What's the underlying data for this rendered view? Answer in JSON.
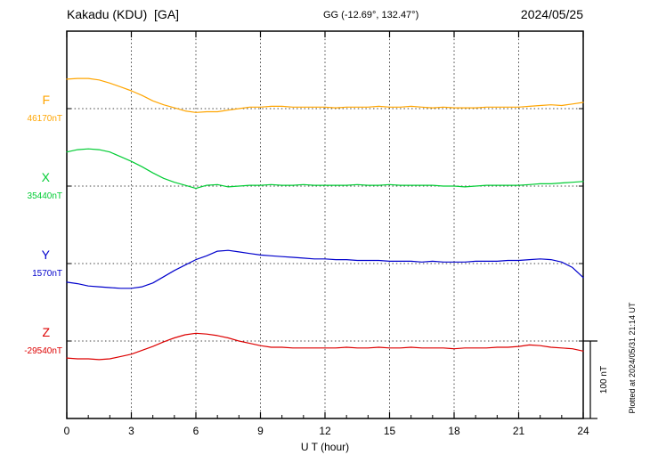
{
  "header": {
    "station": "Kakadu (KDU)  [GA]",
    "coordinates": "GG (-12.69°, 132.47°)",
    "date": "2024/05/25"
  },
  "chart_data": {
    "type": "line",
    "title": "Kakadu (KDU)  [GA]",
    "subtitle": "GG (-12.69°, 132.47°)",
    "date": "2024/05/25",
    "xlabel": "U T (hour)",
    "x_ticks": [
      0,
      3,
      6,
      9,
      12,
      15,
      18,
      21,
      24
    ],
    "x_range_hours": [
      0,
      24
    ],
    "grid": "dotted vertical at 3-hour marks, dotted horizontal baselines per trace",
    "scale_bar": {
      "label": "100 nT",
      "nT": 100
    },
    "footnote": "Plotted at 2024/05/31 21:14 UT",
    "x": [
      0,
      0.5,
      1,
      1.5,
      2,
      2.5,
      3,
      3.5,
      4,
      4.5,
      5,
      5.5,
      6,
      6.5,
      7,
      7.5,
      8,
      8.5,
      9,
      9.5,
      10,
      10.5,
      11,
      11.5,
      12,
      12.5,
      13,
      13.5,
      14,
      14.5,
      15,
      15.5,
      16,
      16.5,
      17,
      17.5,
      18,
      18.5,
      19,
      19.5,
      20,
      20.5,
      21,
      21.5,
      22,
      22.5,
      23,
      23.5,
      24
    ],
    "series": [
      {
        "name": "F",
        "color": "#ffa500",
        "baseline_value_label": "46170nT",
        "offsets_nT": [
          38,
          39,
          39,
          37,
          33,
          28,
          23,
          17,
          10,
          5,
          1,
          -3,
          -5,
          -4,
          -4,
          -2,
          0,
          2,
          2,
          3,
          3,
          2,
          2,
          2,
          2,
          1,
          2,
          2,
          2,
          3,
          2,
          2,
          3,
          2,
          1,
          2,
          1,
          1,
          1,
          2,
          2,
          2,
          2,
          3,
          4,
          5,
          4,
          6,
          8
        ]
      },
      {
        "name": "X",
        "color": "#00cc33",
        "baseline_value_label": "35440nT",
        "offsets_nT": [
          44,
          47,
          48,
          47,
          44,
          38,
          32,
          25,
          17,
          10,
          5,
          1,
          -3,
          1,
          2,
          -1,
          0,
          1,
          1,
          2,
          1,
          1,
          2,
          1,
          1,
          1,
          1,
          2,
          1,
          1,
          2,
          1,
          1,
          1,
          1,
          0,
          0,
          -1,
          0,
          1,
          1,
          1,
          1,
          2,
          3,
          3,
          4,
          5,
          6
        ]
      },
      {
        "name": "Y",
        "color": "#0000cc",
        "baseline_value_label": "1570nT",
        "offsets_nT": [
          -24,
          -26,
          -29,
          -30,
          -31,
          -32,
          -32,
          -30,
          -25,
          -17,
          -9,
          -2,
          5,
          10,
          16,
          17,
          15,
          13,
          11,
          10,
          9,
          8,
          7,
          6,
          6,
          5,
          5,
          4,
          4,
          4,
          3,
          3,
          3,
          2,
          3,
          2,
          2,
          2,
          3,
          3,
          3,
          4,
          4,
          5,
          6,
          5,
          2,
          -5,
          -18
        ]
      },
      {
        "name": "Z",
        "color": "#dd0000",
        "baseline_value_label": "-29540nT",
        "offsets_nT": [
          -22,
          -23,
          -23,
          -24,
          -23,
          -20,
          -17,
          -12,
          -7,
          -1,
          4,
          8,
          10,
          9,
          7,
          4,
          0,
          -3,
          -6,
          -8,
          -8,
          -9,
          -9,
          -9,
          -9,
          -9,
          -8,
          -9,
          -9,
          -8,
          -9,
          -9,
          -8,
          -9,
          -9,
          -9,
          -10,
          -9,
          -9,
          -9,
          -8,
          -8,
          -7,
          -5,
          -6,
          -8,
          -9,
          -10,
          -13
        ]
      }
    ]
  }
}
